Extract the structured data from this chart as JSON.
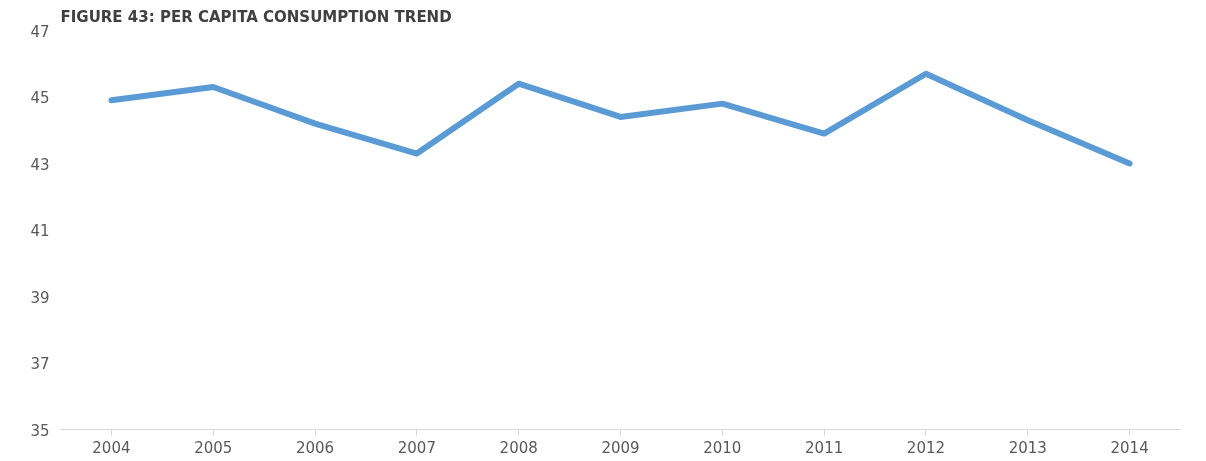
{
  "chart_data": {
    "type": "line",
    "title": "FIGURE 43: PER CAPITA CONSUMPTION TREND",
    "categories": [
      "2004",
      "2005",
      "2006",
      "2007",
      "2008",
      "2009",
      "2010",
      "2011",
      "2012",
      "2013",
      "2014"
    ],
    "series": [
      {
        "color": "#5b9bd5",
        "values": [
          44.9,
          45.3,
          44.2,
          43.3,
          45.4,
          44.4,
          44.8,
          43.9,
          45.7,
          44.3,
          43.0
        ]
      }
    ],
    "ylim": [
      35,
      47
    ],
    "yticks": [
      35,
      37,
      39,
      41,
      43,
      45,
      47
    ],
    "grid": false,
    "line_style": "solid",
    "marker": "none"
  }
}
